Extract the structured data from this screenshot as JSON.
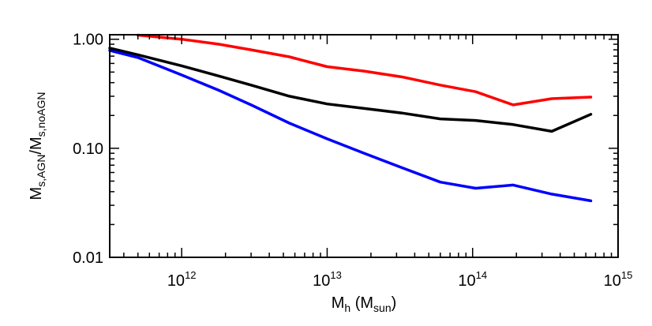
{
  "chart_data": {
    "type": "line",
    "title": "",
    "xlabel": {
      "main": "M",
      "sub": "h",
      "paren_open": " (M",
      "paren_sub": "sun",
      "paren_close": ")"
    },
    "ylabel": {
      "m1": "M",
      "s1": "s,AGN",
      "slash": "/M",
      "s2": "s,noAGN"
    },
    "xscale": "log",
    "yscale": "log",
    "xlim": [
      320000000000.0,
      1000000000000000.0
    ],
    "ylim": [
      0.01,
      1.1
    ],
    "grid": false,
    "x_ticks": [
      {
        "value": 1000000000000.0,
        "base": "10",
        "exp": "12"
      },
      {
        "value": 10000000000000.0,
        "base": "10",
        "exp": "13"
      },
      {
        "value": 100000000000000.0,
        "base": "10",
        "exp": "14"
      },
      {
        "value": 1000000000000000.0,
        "base": "10",
        "exp": "15"
      }
    ],
    "y_ticks": [
      {
        "value": 0.01,
        "label": "0.01"
      },
      {
        "value": 0.1,
        "label": "0.10"
      },
      {
        "value": 1.0,
        "label": "1.00"
      }
    ],
    "series": [
      {
        "color": "#ff0000",
        "points": [
          [
            500000000000.0,
            1.09
          ],
          [
            1000000000000.0,
            1.0
          ],
          [
            1800000000000.0,
            0.9
          ],
          [
            3000000000000.0,
            0.8
          ],
          [
            5500000000000.0,
            0.69
          ],
          [
            10000000000000.0,
            0.56
          ],
          [
            18000000000000.0,
            0.51
          ],
          [
            33000000000000.0,
            0.45
          ],
          [
            60000000000000.0,
            0.38
          ],
          [
            105000000000000.0,
            0.33
          ],
          [
            190000000000000.0,
            0.25
          ],
          [
            350000000000000.0,
            0.285
          ],
          [
            650000000000000.0,
            0.295
          ]
        ]
      },
      {
        "color": "#000000",
        "points": [
          [
            320000000000.0,
            0.83
          ],
          [
            500000000000.0,
            0.72
          ],
          [
            1000000000000.0,
            0.57
          ],
          [
            1800000000000.0,
            0.46
          ],
          [
            3000000000000.0,
            0.38
          ],
          [
            5500000000000.0,
            0.3
          ],
          [
            10000000000000.0,
            0.255
          ],
          [
            18000000000000.0,
            0.232
          ],
          [
            33000000000000.0,
            0.21
          ],
          [
            60000000000000.0,
            0.186
          ],
          [
            105000000000000.0,
            0.18
          ],
          [
            190000000000000.0,
            0.165
          ],
          [
            350000000000000.0,
            0.143
          ],
          [
            650000000000000.0,
            0.205
          ]
        ]
      },
      {
        "color": "#0000ff",
        "points": [
          [
            320000000000.0,
            0.79
          ],
          [
            500000000000.0,
            0.68
          ],
          [
            1000000000000.0,
            0.47
          ],
          [
            1800000000000.0,
            0.34
          ],
          [
            3000000000000.0,
            0.25
          ],
          [
            5500000000000.0,
            0.17
          ],
          [
            10000000000000.0,
            0.122
          ],
          [
            18000000000000.0,
            0.09
          ],
          [
            33000000000000.0,
            0.066
          ],
          [
            60000000000000.0,
            0.049
          ],
          [
            105000000000000.0,
            0.043
          ],
          [
            190000000000000.0,
            0.046
          ],
          [
            350000000000000.0,
            0.038
          ],
          [
            650000000000000.0,
            0.033
          ]
        ]
      }
    ]
  }
}
